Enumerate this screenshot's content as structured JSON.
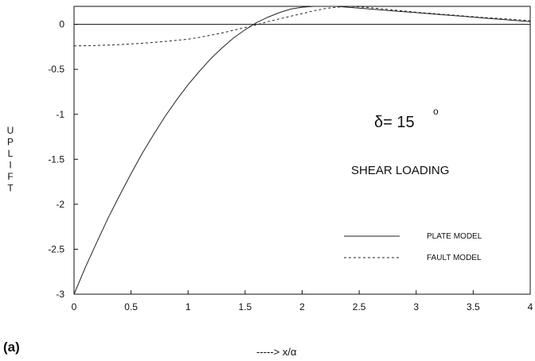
{
  "chart_data": {
    "type": "line",
    "panel_label": "(a)",
    "xlabel": "-----> x/α",
    "ylabel": "UPLIFT",
    "xlim": [
      0,
      4
    ],
    "ylim": [
      -3,
      0.2
    ],
    "xticks": [
      0,
      0.5,
      1,
      1.5,
      2,
      2.5,
      3,
      3.5,
      4
    ],
    "xtick_labels": [
      "0",
      "0.5",
      "1",
      "1.5",
      "2",
      "2.5",
      "3",
      "3.5",
      "4"
    ],
    "yticks": [
      0,
      -0.5,
      -1,
      -1.5,
      -2,
      -2.5,
      -3
    ],
    "ytick_labels": [
      "0",
      "-0.5",
      "-1",
      "-1.5",
      "-2",
      "-2.5",
      "-3"
    ],
    "annotation_delta": "δ= 15",
    "annotation_degree": "o",
    "annotation_loading": "SHEAR LOADING",
    "series": [
      {
        "name": "PLATE MODEL",
        "style": "solid",
        "x": [
          0,
          0.1,
          0.2,
          0.3,
          0.4,
          0.5,
          0.6,
          0.7,
          0.8,
          0.9,
          1.0,
          1.1,
          1.2,
          1.3,
          1.4,
          1.5,
          1.6,
          1.7,
          1.8,
          1.9,
          2.0,
          2.1,
          2.2,
          2.3,
          2.4,
          2.5,
          2.6,
          2.8,
          3.0,
          3.2,
          3.4,
          3.6,
          3.8,
          4.0
        ],
        "y": [
          -3.0,
          -2.7,
          -2.42,
          -2.15,
          -1.9,
          -1.66,
          -1.43,
          -1.22,
          -1.02,
          -0.84,
          -0.67,
          -0.52,
          -0.38,
          -0.26,
          -0.15,
          -0.06,
          0.02,
          0.08,
          0.13,
          0.17,
          0.19,
          0.2,
          0.2,
          0.2,
          0.19,
          0.18,
          0.17,
          0.15,
          0.13,
          0.11,
          0.09,
          0.07,
          0.05,
          0.03
        ]
      },
      {
        "name": "FAULT MODEL",
        "style": "dashed",
        "x": [
          0,
          0.2,
          0.4,
          0.6,
          0.8,
          1.0,
          1.1,
          1.2,
          1.3,
          1.4,
          1.5,
          1.6,
          1.7,
          1.8,
          1.9,
          2.0,
          2.1,
          2.2,
          2.3,
          2.4,
          2.5,
          2.6,
          2.8,
          3.0,
          3.2,
          3.4,
          3.6,
          3.8,
          4.0
        ],
        "y": [
          -0.24,
          -0.235,
          -0.225,
          -0.21,
          -0.19,
          -0.165,
          -0.145,
          -0.12,
          -0.095,
          -0.065,
          -0.035,
          -0.005,
          0.03,
          0.06,
          0.09,
          0.12,
          0.15,
          0.175,
          0.19,
          0.2,
          0.195,
          0.185,
          0.16,
          0.135,
          0.115,
          0.095,
          0.075,
          0.06,
          0.04
        ]
      }
    ],
    "legend_position": "lower-right",
    "grid": false
  }
}
